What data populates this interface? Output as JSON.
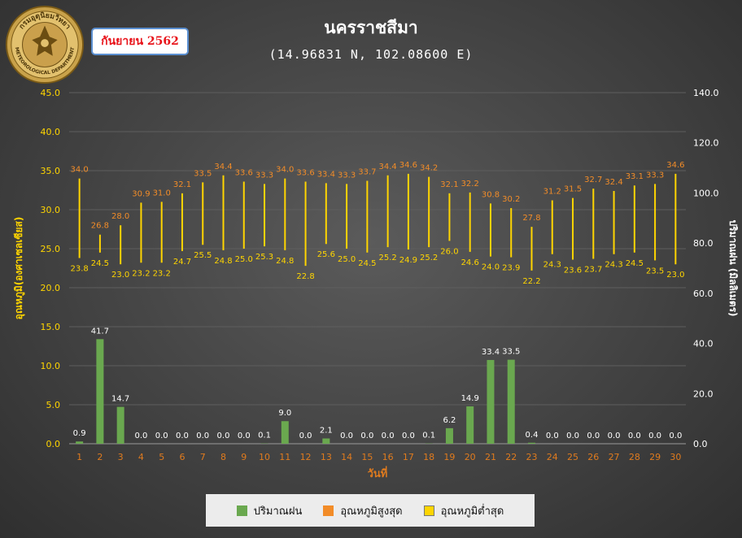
{
  "header": {
    "title": "นครราชสีมา",
    "coordinates": "(14.96831 N, 102.08600 E)",
    "month_label": "กันยายน 2562"
  },
  "logo": {
    "outer_text": "กรมอุตุนิยมวิทยา",
    "inner_text": "METEOROLOGICAL DEPARTMENT"
  },
  "colors": {
    "rain": "#6aa84f",
    "tmax": "#f28c28",
    "tmin": "#ffd500",
    "left_axis": "#ffd500",
    "right_axis": "#ffffff",
    "x_ticks": "#e07b1e"
  },
  "chart_data": {
    "type": "bar",
    "x": [
      1,
      2,
      3,
      4,
      5,
      6,
      7,
      8,
      9,
      10,
      11,
      12,
      13,
      14,
      15,
      16,
      17,
      18,
      19,
      20,
      21,
      22,
      23,
      24,
      25,
      26,
      27,
      28,
      29,
      30
    ],
    "xlabel": "วันที่",
    "ylabel_left": "อุณหภูมิ(องศาเซลเซียส)",
    "ylabel_right": "ปริมาณฝน (มิลลิเมตร)",
    "ylim_left": [
      0,
      45
    ],
    "ylim_right": [
      0,
      140
    ],
    "yticks_left": [
      "0.0",
      "5.0",
      "10.0",
      "15.0",
      "20.0",
      "25.0",
      "30.0",
      "35.0",
      "40.0",
      "45.0"
    ],
    "yticks_right": [
      "0.0",
      "20.0",
      "40.0",
      "60.0",
      "80.0",
      "100.0",
      "120.0",
      "140.0"
    ],
    "grid": "horizontal",
    "legend_position": "bottom",
    "series": [
      {
        "name": "ปริมาณฝน",
        "type": "bar",
        "axis": "right",
        "values": [
          0.9,
          41.7,
          14.7,
          0.0,
          0.0,
          0.0,
          0.0,
          0.0,
          0.0,
          0.1,
          9.0,
          0.0,
          2.1,
          0.0,
          0.0,
          0.0,
          0.0,
          0.1,
          6.2,
          14.9,
          33.4,
          33.5,
          0.4,
          0.0,
          0.0,
          0.0,
          0.0,
          0.0,
          0.0,
          0.0
        ]
      },
      {
        "name": "อุณหภูมิสูงสุด",
        "type": "range-high",
        "axis": "left",
        "values": [
          34.0,
          26.8,
          28.0,
          30.9,
          31.0,
          32.1,
          33.5,
          34.4,
          33.6,
          33.3,
          34.0,
          33.6,
          33.4,
          33.3,
          33.7,
          34.4,
          34.6,
          34.2,
          32.1,
          32.2,
          30.8,
          30.2,
          27.8,
          31.2,
          31.5,
          32.7,
          32.4,
          33.1,
          33.3,
          34.6
        ]
      },
      {
        "name": "อุณหภูมิต่ำสุด",
        "type": "range-low",
        "axis": "left",
        "values": [
          23.8,
          24.5,
          23.0,
          23.2,
          23.2,
          24.7,
          25.5,
          24.8,
          25.0,
          25.3,
          24.8,
          22.8,
          25.6,
          25.0,
          24.5,
          25.2,
          24.9,
          25.2,
          26.0,
          24.6,
          24.0,
          23.9,
          22.2,
          24.3,
          23.6,
          23.7,
          24.3,
          24.5,
          23.5,
          23.0
        ]
      }
    ]
  }
}
